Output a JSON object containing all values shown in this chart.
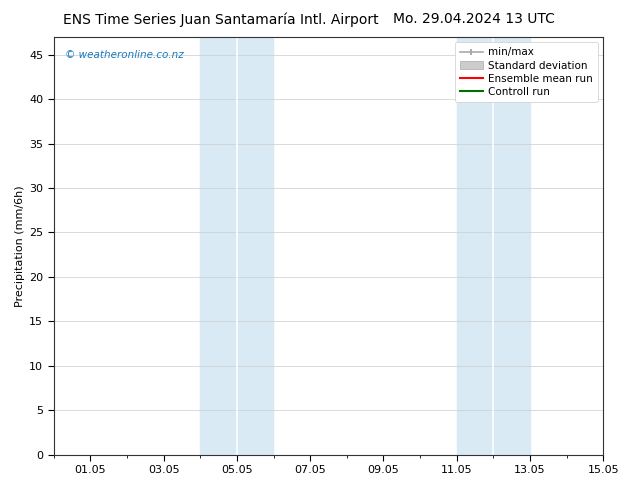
{
  "title_left": "ENS Time Series Juan Santamaría Intl. Airport",
  "title_right": "Mo. 29.04.2024 13 UTC",
  "ylabel": "Precipitation (mm/6h)",
  "xlabel": "",
  "ylim": [
    0,
    47
  ],
  "yticks": [
    0,
    5,
    10,
    15,
    20,
    25,
    30,
    35,
    40,
    45
  ],
  "xtick_labels": [
    "01.05",
    "03.05",
    "05.05",
    "07.05",
    "09.05",
    "11.05",
    "13.05",
    "15.05"
  ],
  "xtick_positions": [
    1,
    3,
    5,
    7,
    9,
    11,
    13,
    15
  ],
  "xlim": [
    0,
    15
  ],
  "shaded_regions": [
    {
      "xmin": 4.0,
      "xmax": 5.0
    },
    {
      "xmin": 5.0,
      "xmax": 6.0
    },
    {
      "xmin": 11.0,
      "xmax": 12.0
    },
    {
      "xmin": 12.0,
      "xmax": 13.0
    }
  ],
  "shaded_color": "#daeaf5",
  "background_color": "#ffffff",
  "watermark_text": "© weatheronline.co.nz",
  "watermark_color": "#1a7abf",
  "legend_entries": [
    {
      "label": "min/max"
    },
    {
      "label": "Standard deviation"
    },
    {
      "label": "Ensemble mean run"
    },
    {
      "label": "Controll run"
    }
  ],
  "title_fontsize": 10,
  "axis_fontsize": 8,
  "tick_fontsize": 8,
  "legend_fontsize": 7.5
}
